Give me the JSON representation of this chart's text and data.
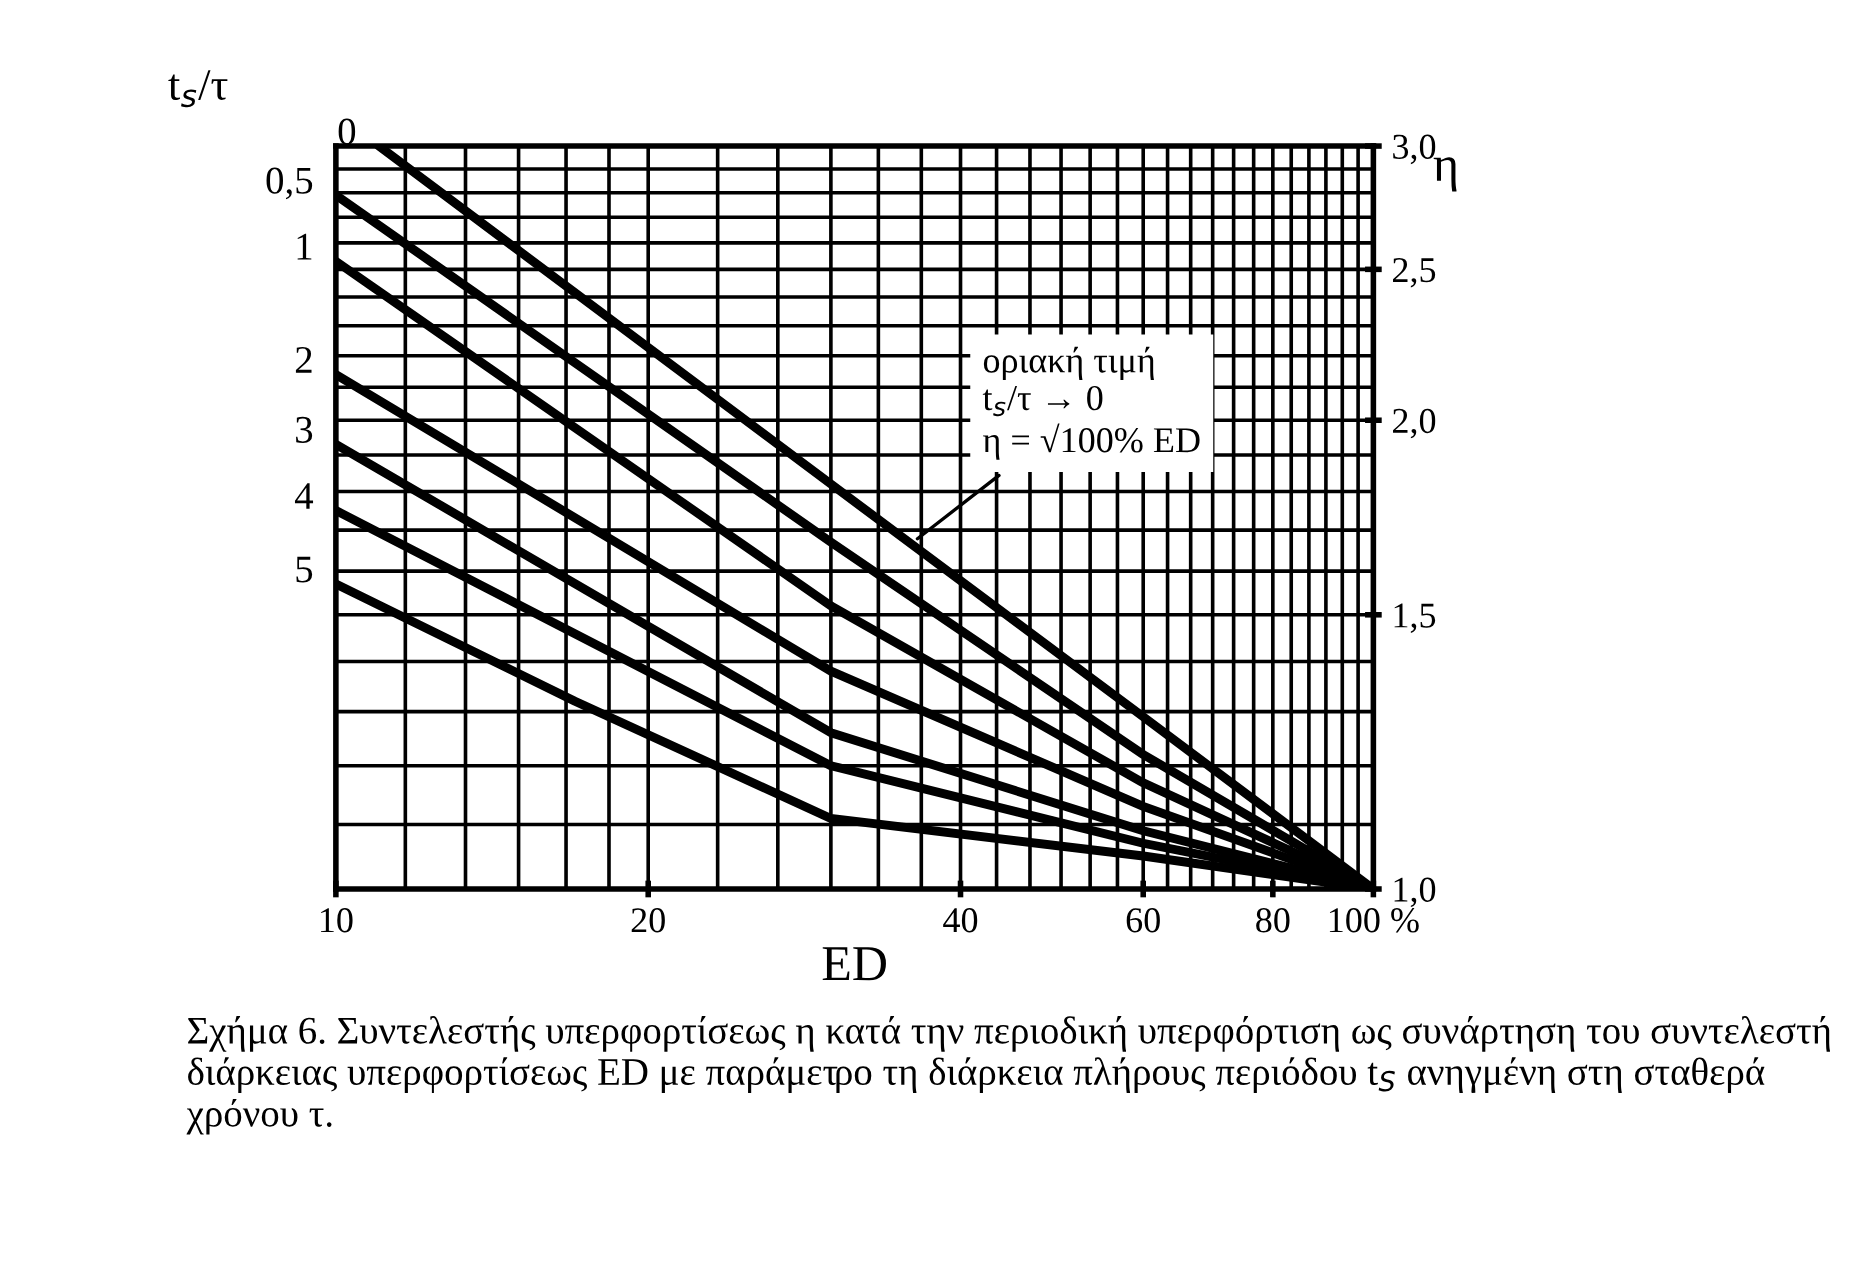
{
  "chart_data": {
    "type": "line",
    "xlabel": "ED",
    "ylabel": "η",
    "xlim": [
      10,
      100
    ],
    "ylim": [
      1.0,
      3.0
    ],
    "log": "xy",
    "xticks": [
      10,
      20,
      40,
      60,
      80,
      {
        "value": 100,
        "label": "100 %"
      }
    ],
    "yticks": [
      {
        "value": 1.0,
        "label": "1,0"
      },
      {
        "value": 1.5,
        "label": "1,5"
      },
      {
        "value": 2.0,
        "label": "2,0"
      },
      {
        "value": 2.5,
        "label": "2,5"
      },
      {
        "value": 3.0,
        "label": "3,0"
      }
    ],
    "grid": true,
    "legend": false,
    "marker": "none",
    "line_style": "solid",
    "series": [
      {
        "name": "0",
        "color": "#000000",
        "x": [
          11,
          30,
          60,
          100
        ],
        "values": [
          3.0,
          1.82,
          1.29,
          1.0
        ]
      },
      {
        "name": "0,5",
        "color": "#000000",
        "x": [
          10,
          30,
          60,
          100
        ],
        "values": [
          2.79,
          1.67,
          1.22,
          1.0
        ]
      },
      {
        "name": "1",
        "color": "#000000",
        "x": [
          10,
          30,
          60,
          100
        ],
        "values": [
          2.53,
          1.52,
          1.17,
          1.0
        ]
      },
      {
        "name": "2",
        "color": "#000000",
        "x": [
          10,
          30,
          60,
          100
        ],
        "values": [
          2.14,
          1.38,
          1.13,
          1.0
        ]
      },
      {
        "name": "3",
        "color": "#000000",
        "x": [
          10,
          30,
          60,
          100
        ],
        "values": [
          1.93,
          1.26,
          1.09,
          1.0
        ]
      },
      {
        "name": "4",
        "color": "#000000",
        "x": [
          10,
          30,
          60,
          100
        ],
        "values": [
          1.75,
          1.2,
          1.07,
          1.0
        ]
      },
      {
        "name": "5",
        "color": "#000000",
        "x": [
          10,
          17,
          30,
          60,
          100
        ],
        "values": [
          1.57,
          1.32,
          1.11,
          1.05,
          1.0
        ]
      }
    ],
    "annotations": [
      "t$_{s}$/τ",
      {
        "text": "οριακή τιμή\nt$_{s}$/τ → 0\nη = √100% ED",
        "x": 36,
        "y": 1.67
      },
      "Σχήμα 6. Συντελεστής υπερφορτίσεως η κατά την περιοδική υπερφόρτιση ως συνάρτηση του συντελεστή διάρκειας υπερφορτίσεως ED με παράμετρο τη διάρκεια πλήρους περιόδου t$_{S}$ ανηγμένη στη σταθερά χρόνου τ."
    ]
  }
}
